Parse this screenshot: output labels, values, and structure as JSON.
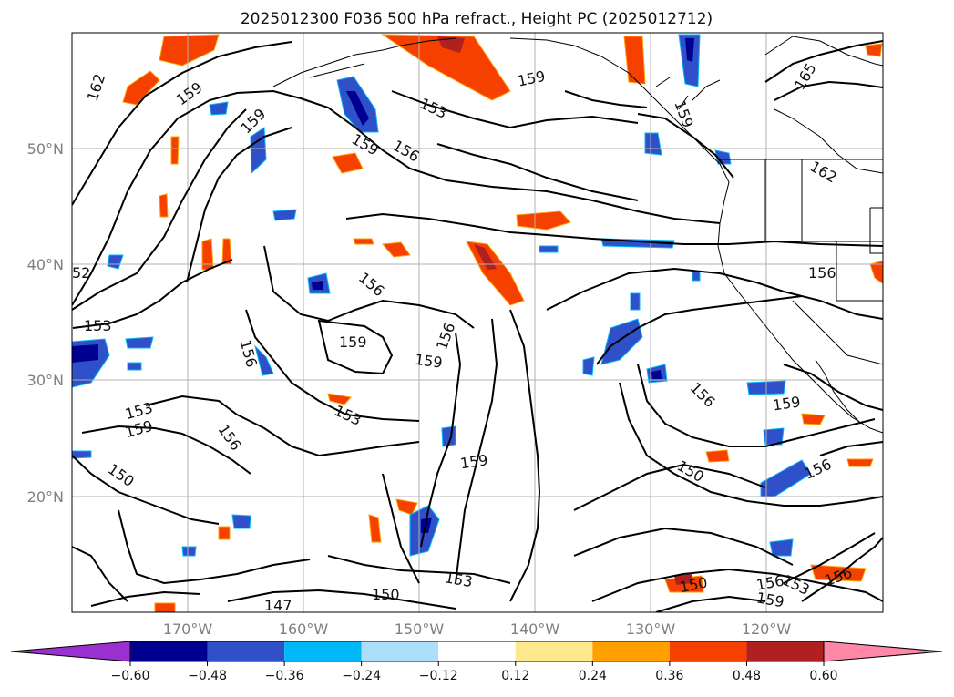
{
  "title": "2025012300 F036 500 hPa refract., Height PC (2025012712)",
  "lat_labels": [
    "50°N",
    "40°N",
    "30°N",
    "20°N"
  ],
  "lon_labels": [
    "170°W",
    "160°W",
    "150°W",
    "140°W",
    "130°W",
    "120°W"
  ],
  "colorbar": {
    "ticks": [
      "−0.60",
      "−0.48",
      "−0.36",
      "−0.24",
      "−0.12",
      "0.12",
      "0.24",
      "0.36",
      "0.48",
      "0.60"
    ],
    "colors": [
      "#9b30d0",
      "#000090",
      "#2f50c8",
      "#00b8f8",
      "#ade0f8",
      "#ffffff",
      "#fde98c",
      "#ffa000",
      "#f64000",
      "#b02020",
      "#ff88a8"
    ]
  },
  "contour_labels": [
    {
      "text": "162"
    },
    {
      "text": "159"
    },
    {
      "text": "159"
    },
    {
      "text": "153"
    },
    {
      "text": "159"
    },
    {
      "text": "156"
    },
    {
      "text": "159"
    },
    {
      "text": "159"
    },
    {
      "text": "165"
    },
    {
      "text": "162"
    },
    {
      "text": "156"
    },
    {
      "text": "156"
    },
    {
      "text": "153"
    },
    {
      "text": "159"
    },
    {
      "text": "159"
    },
    {
      "text": "156"
    },
    {
      "text": "153"
    },
    {
      "text": "159"
    },
    {
      "text": "156"
    },
    {
      "text": "153"
    },
    {
      "text": "159"
    },
    {
      "text": "156"
    },
    {
      "text": "150"
    },
    {
      "text": "159"
    },
    {
      "text": "156"
    },
    {
      "text": "150"
    },
    {
      "text": "153"
    },
    {
      "text": "150"
    },
    {
      "text": "153"
    },
    {
      "text": "150"
    },
    {
      "text": "147"
    },
    {
      "text": "150"
    },
    {
      "text": "156"
    },
    {
      "text": "153"
    },
    {
      "text": "159"
    },
    {
      "text": "156"
    },
    {
      "text": "52"
    },
    {
      "text": "156"
    }
  ]
}
